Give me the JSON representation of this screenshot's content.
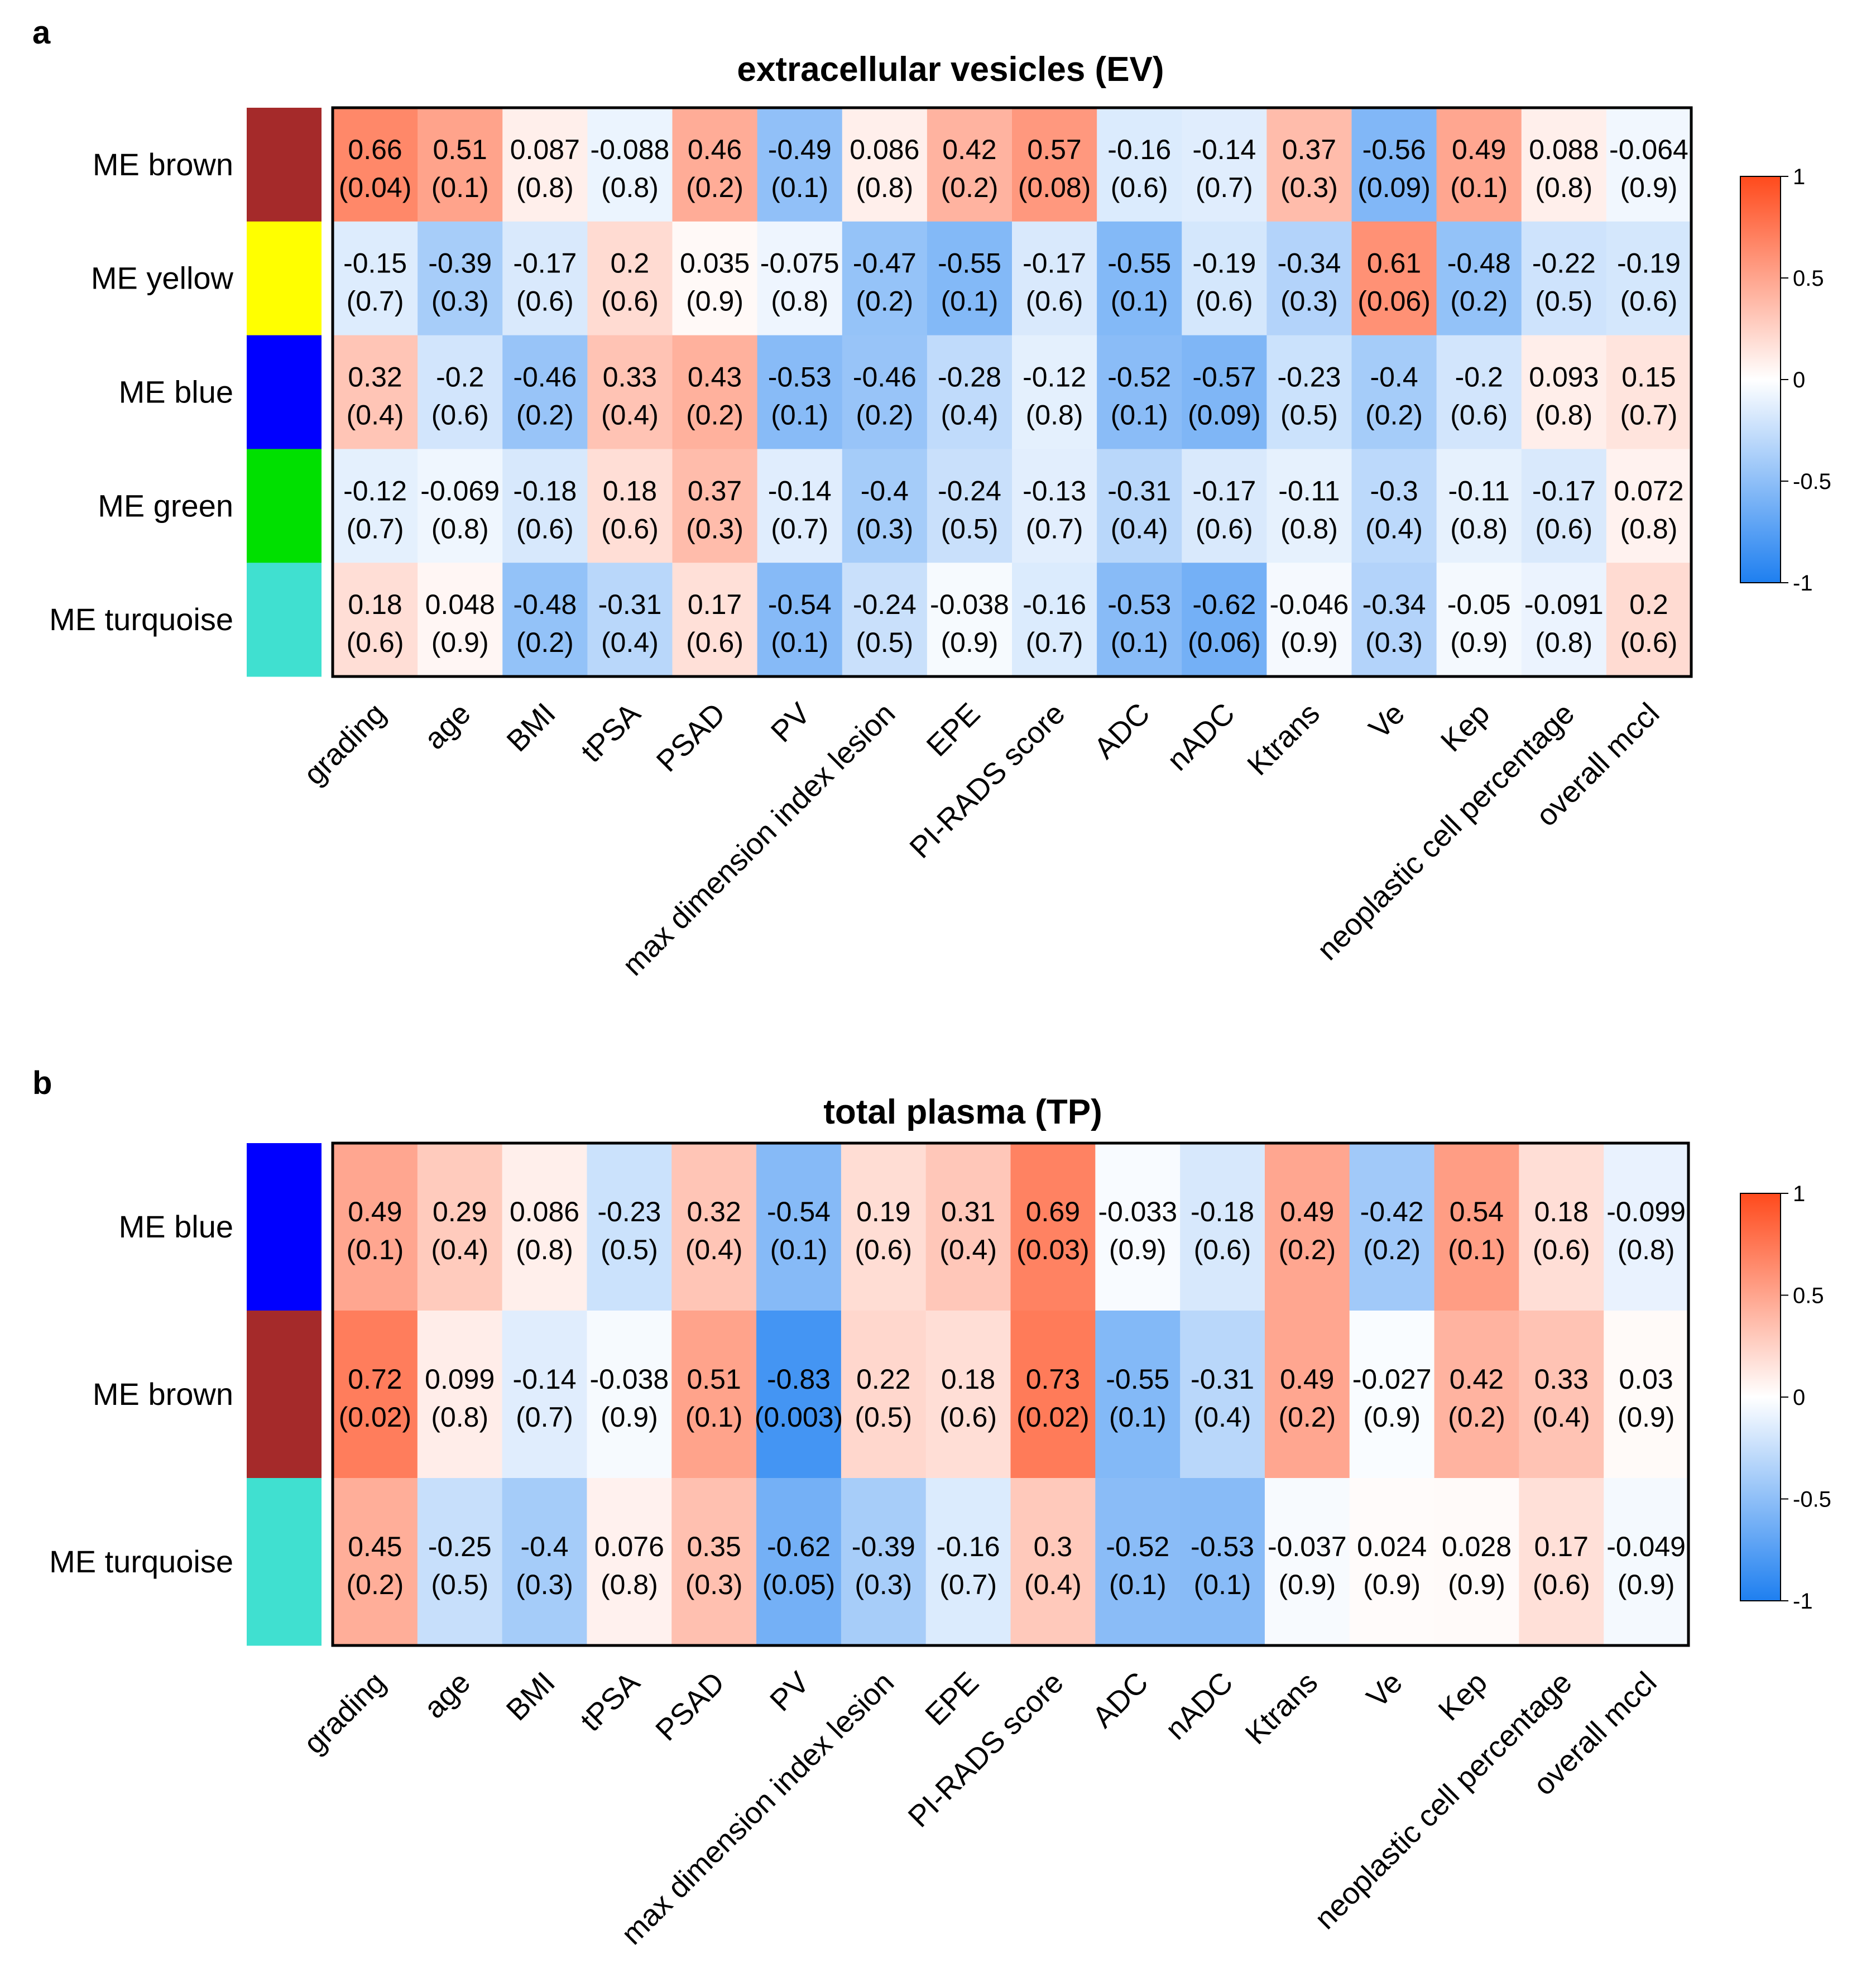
{
  "chart_data": [
    {
      "type": "heatmap",
      "panel": "a",
      "title": "extracellular vesicles (EV)",
      "rows": [
        "ME brown",
        "ME yellow",
        "ME blue",
        "ME green",
        "ME turquoise"
      ],
      "row_colors": [
        "#a52a2a",
        "#ffff00",
        "#0000ff",
        "#00e000",
        "#40e0d0"
      ],
      "columns": [
        "grading",
        "age",
        "BMI",
        "tPSA",
        "PSAD",
        "PV",
        "max dimension index lesion",
        "EPE",
        "PI-RADS score",
        "ADC",
        "nADC",
        "Ktrans",
        "Ve",
        "Kep",
        "neoplastic cell percentage",
        "overall mccl"
      ],
      "values": [
        [
          "0.66",
          "0.51",
          "0.087",
          "-0.088",
          "0.46",
          "-0.49",
          "0.086",
          "0.42",
          "0.57",
          "-0.16",
          "-0.14",
          "0.37",
          "-0.56",
          "0.49",
          "0.088",
          "-0.064"
        ],
        [
          "-0.15",
          "-0.39",
          "-0.17",
          "0.2",
          "0.035",
          "-0.075",
          "-0.47",
          "-0.55",
          "-0.17",
          "-0.55",
          "-0.19",
          "-0.34",
          "0.61",
          "-0.48",
          "-0.22",
          "-0.19"
        ],
        [
          "0.32",
          "-0.2",
          "-0.46",
          "0.33",
          "0.43",
          "-0.53",
          "-0.46",
          "-0.28",
          "-0.12",
          "-0.52",
          "-0.57",
          "-0.23",
          "-0.4",
          "-0.2",
          "0.093",
          "0.15"
        ],
        [
          "-0.12",
          "-0.069",
          "-0.18",
          "0.18",
          "0.37",
          "-0.14",
          "-0.4",
          "-0.24",
          "-0.13",
          "-0.31",
          "-0.17",
          "-0.11",
          "-0.3",
          "-0.11",
          "-0.17",
          "0.072"
        ],
        [
          "0.18",
          "0.048",
          "-0.48",
          "-0.31",
          "0.17",
          "-0.54",
          "-0.24",
          "-0.038",
          "-0.16",
          "-0.53",
          "-0.62",
          "-0.046",
          "-0.34",
          "-0.05",
          "-0.091",
          "0.2"
        ]
      ],
      "pvalues": [
        [
          "(0.04)",
          "(0.1)",
          "(0.8)",
          "(0.8)",
          "(0.2)",
          "(0.1)",
          "(0.8)",
          "(0.2)",
          "(0.08)",
          "(0.6)",
          "(0.7)",
          "(0.3)",
          "(0.09)",
          "(0.1)",
          "(0.8)",
          "(0.9)"
        ],
        [
          "(0.7)",
          "(0.3)",
          "(0.6)",
          "(0.6)",
          "(0.9)",
          "(0.8)",
          "(0.2)",
          "(0.1)",
          "(0.6)",
          "(0.1)",
          "(0.6)",
          "(0.3)",
          "(0.06)",
          "(0.2)",
          "(0.5)",
          "(0.6)"
        ],
        [
          "(0.4)",
          "(0.6)",
          "(0.2)",
          "(0.4)",
          "(0.2)",
          "(0.1)",
          "(0.2)",
          "(0.4)",
          "(0.8)",
          "(0.1)",
          "(0.09)",
          "(0.5)",
          "(0.2)",
          "(0.6)",
          "(0.8)",
          "(0.7)"
        ],
        [
          "(0.7)",
          "(0.8)",
          "(0.6)",
          "(0.6)",
          "(0.3)",
          "(0.7)",
          "(0.3)",
          "(0.5)",
          "(0.7)",
          "(0.4)",
          "(0.6)",
          "(0.8)",
          "(0.4)",
          "(0.8)",
          "(0.6)",
          "(0.8)"
        ],
        [
          "(0.6)",
          "(0.9)",
          "(0.2)",
          "(0.4)",
          "(0.6)",
          "(0.1)",
          "(0.5)",
          "(0.9)",
          "(0.7)",
          "(0.1)",
          "(0.06)",
          "(0.9)",
          "(0.3)",
          "(0.9)",
          "(0.8)",
          "(0.6)"
        ]
      ],
      "legend": {
        "range": [
          -1,
          1
        ],
        "ticks": [
          "1",
          "0.5",
          "0",
          "-0.5",
          "-1"
        ]
      }
    },
    {
      "type": "heatmap",
      "panel": "b",
      "title": "total plasma (TP)",
      "rows": [
        "ME blue",
        "ME brown",
        "ME turquoise"
      ],
      "row_colors": [
        "#0000ff",
        "#a52a2a",
        "#40e0d0"
      ],
      "columns": [
        "grading",
        "age",
        "BMI",
        "tPSA",
        "PSAD",
        "PV",
        "max dimension index lesion",
        "EPE",
        "PI-RADS score",
        "ADC",
        "nADC",
        "Ktrans",
        "Ve",
        "Kep",
        "neoplastic cell percentage",
        "overall mccl"
      ],
      "values": [
        [
          "0.49",
          "0.29",
          "0.086",
          "-0.23",
          "0.32",
          "-0.54",
          "0.19",
          "0.31",
          "0.69",
          "-0.033",
          "-0.18",
          "0.49",
          "-0.42",
          "0.54",
          "0.18",
          "-0.099"
        ],
        [
          "0.72",
          "0.099",
          "-0.14",
          "-0.038",
          "0.51",
          "-0.83",
          "0.22",
          "0.18",
          "0.73",
          "-0.55",
          "-0.31",
          "0.49",
          "-0.027",
          "0.42",
          "0.33",
          "0.03"
        ],
        [
          "0.45",
          "-0.25",
          "-0.4",
          "0.076",
          "0.35",
          "-0.62",
          "-0.39",
          "-0.16",
          "0.3",
          "-0.52",
          "-0.53",
          "-0.037",
          "0.024",
          "0.028",
          "0.17",
          "-0.049"
        ]
      ],
      "pvalues": [
        [
          "(0.1)",
          "(0.4)",
          "(0.8)",
          "(0.5)",
          "(0.4)",
          "(0.1)",
          "(0.6)",
          "(0.4)",
          "(0.03)",
          "(0.9)",
          "(0.6)",
          "(0.2)",
          "(0.2)",
          "(0.1)",
          "(0.6)",
          "(0.8)"
        ],
        [
          "(0.02)",
          "(0.8)",
          "(0.7)",
          "(0.9)",
          "(0.1)",
          "(0.003)",
          "(0.5)",
          "(0.6)",
          "(0.02)",
          "(0.1)",
          "(0.4)",
          "(0.2)",
          "(0.9)",
          "(0.2)",
          "(0.4)",
          "(0.9)"
        ],
        [
          "(0.2)",
          "(0.5)",
          "(0.3)",
          "(0.8)",
          "(0.3)",
          "(0.05)",
          "(0.3)",
          "(0.7)",
          "(0.4)",
          "(0.1)",
          "(0.1)",
          "(0.9)",
          "(0.9)",
          "(0.9)",
          "(0.6)",
          "(0.9)"
        ]
      ],
      "legend": {
        "range": [
          -1,
          1
        ],
        "ticks": [
          "1",
          "0.5",
          "0",
          "-0.5",
          "-1"
        ]
      }
    }
  ]
}
